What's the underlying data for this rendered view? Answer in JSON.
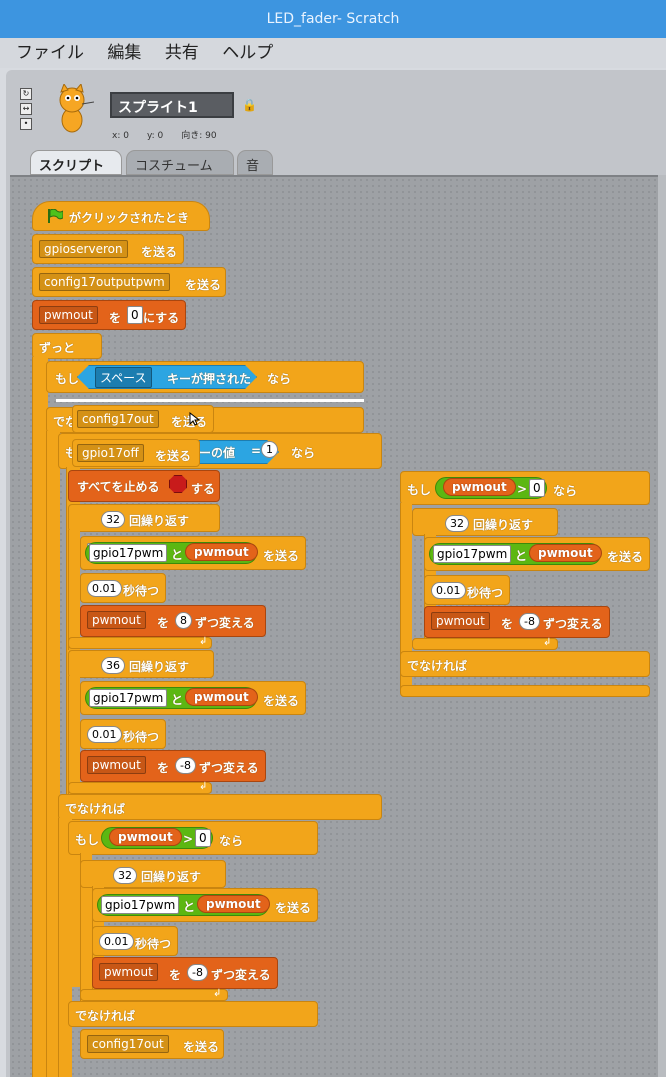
{
  "window": {
    "title": "LED_fader- Scratch"
  },
  "menu": [
    "ファイル",
    "編集",
    "共有",
    "ヘルプ"
  ],
  "sprite": {
    "name": "スプライト1",
    "x_label": "x: 0",
    "y_label": "y: 0",
    "direction_label": "向き: 90"
  },
  "tabs": [
    "スクリプト",
    "コスチューム",
    "音"
  ],
  "colors": {
    "control": "#f2a51a",
    "variable": "#e3631a",
    "operator": "#5cb712",
    "sensing": "#2ca5e2",
    "titlebar": "#3d95e0"
  },
  "script": {
    "hat": "がクリックされたとき",
    "b1_dd": "gpioserveron",
    "send": "を送る",
    "b2_dd": "config17outputpwm",
    "b3_var": "pwmout",
    "wo": "を",
    "b3_num": "0",
    "nisuru": "にする",
    "forever": "ずっと",
    "if": "もし",
    "key_dd": "スペース",
    "key_pressed": "キーが押された",
    "nara": "なら",
    "elseif_frag": "でな",
    "mo_frag": "も",
    "drag_config": "config17out",
    "drag_off": "gpio17off",
    "value_frag": "ーの値",
    "eq": "=",
    "eq_num": "1",
    "stop_all": "すべてを止める",
    "suru_frag": "する",
    "repeat32": "32",
    "repeat36": "36",
    "repeat_label": "回繰り返す",
    "gpio17pwm": "gpio17pwm",
    "to": "と",
    "pwmout": "pwmout",
    "wait_num": "0.01",
    "wait_label": "秒待つ",
    "change_by": "ずつ変える",
    "num8": "8",
    "num_m8": "-8",
    "else": "でなければ",
    "gt": ">",
    "zero": "0",
    "last_dd": "config17out"
  }
}
